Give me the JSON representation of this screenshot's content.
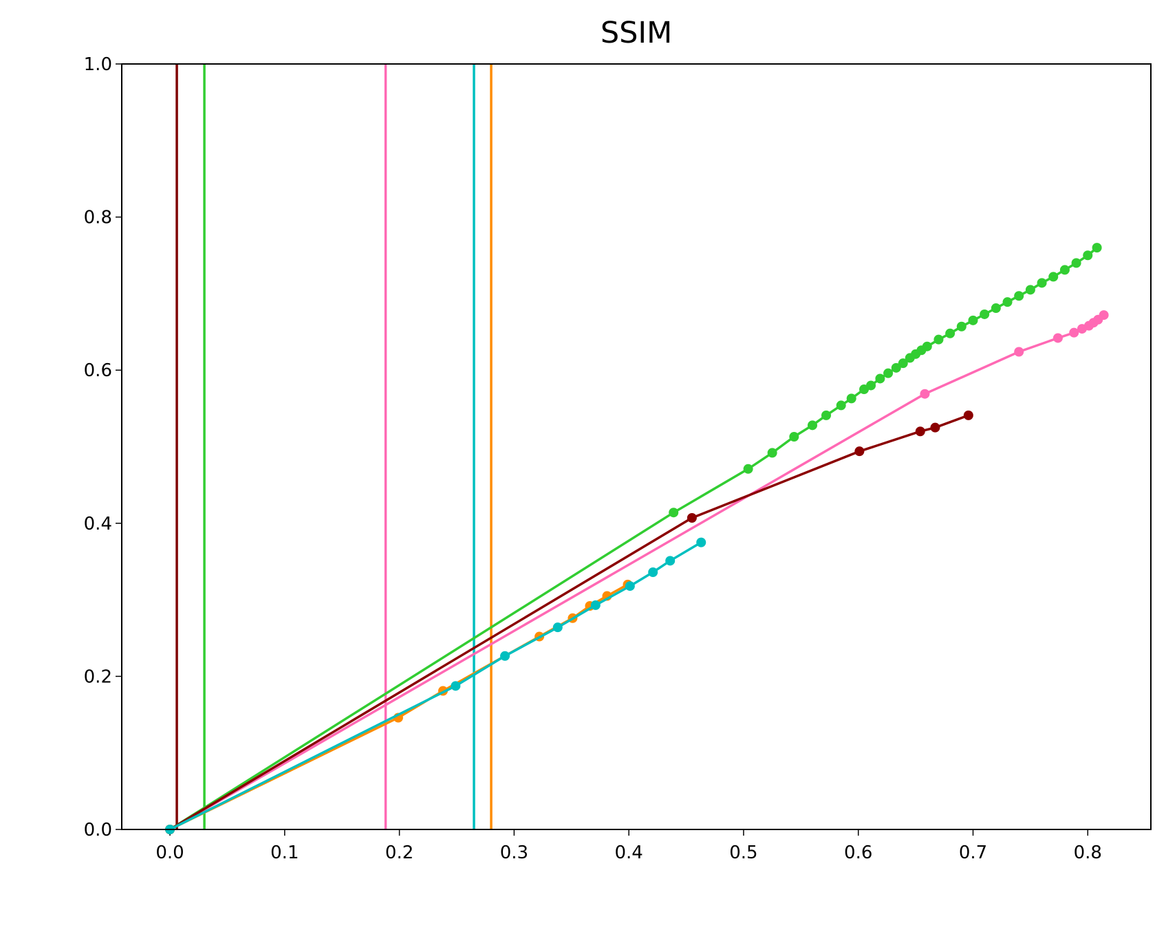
{
  "chart_data": {
    "type": "line",
    "title": "SSIM",
    "xlim": [
      -0.042,
      0.855
    ],
    "ylim": [
      0,
      1
    ],
    "xticks": [
      {
        "value": 0,
        "label": "0.0"
      },
      {
        "value": 0.1,
        "label": "0.1"
      },
      {
        "value": 0.2,
        "label": "0.2"
      },
      {
        "value": 0.3,
        "label": "0.3"
      },
      {
        "value": 0.4,
        "label": "0.4"
      },
      {
        "value": 0.5,
        "label": "0.5"
      },
      {
        "value": 0.6,
        "label": "0.6"
      },
      {
        "value": 0.7,
        "label": "0.7"
      },
      {
        "value": 0.8,
        "label": "0.8"
      }
    ],
    "yticks": [
      {
        "value": 0,
        "label": "0.0"
      },
      {
        "value": 0.2,
        "label": "0.2"
      },
      {
        "value": 0.4,
        "label": "0.4"
      },
      {
        "value": 0.6,
        "label": "0.6"
      },
      {
        "value": 0.8,
        "label": "0.8"
      },
      {
        "value": 1,
        "label": "1.0"
      }
    ],
    "vlines": [
      {
        "x": 0.006,
        "color": "#800000"
      },
      {
        "x": 0.03,
        "color": "#32cd32"
      },
      {
        "x": 0.188,
        "color": "#ff69b4"
      },
      {
        "x": 0.265,
        "color": "#00bfbf"
      },
      {
        "x": 0.28,
        "color": "#ff8c00"
      }
    ],
    "series": [
      {
        "color": "#32cd32",
        "x": [
          0,
          0.439,
          0.504,
          0.525,
          0.544,
          0.56,
          0.572,
          0.585,
          0.594,
          0.605,
          0.611,
          0.619,
          0.626,
          0.633,
          0.639,
          0.645,
          0.65,
          0.655,
          0.66,
          0.67,
          0.68,
          0.69,
          0.7,
          0.71,
          0.72,
          0.73,
          0.74,
          0.75,
          0.76,
          0.77,
          0.78,
          0.79,
          0.8,
          0.808
        ],
        "values": [
          0,
          0.414,
          0.471,
          0.492,
          0.513,
          0.528,
          0.541,
          0.554,
          0.563,
          0.575,
          0.58,
          0.589,
          0.596,
          0.603,
          0.609,
          0.616,
          0.621,
          0.626,
          0.631,
          0.64,
          0.648,
          0.657,
          0.665,
          0.673,
          0.681,
          0.689,
          0.697,
          0.705,
          0.714,
          0.722,
          0.731,
          0.74,
          0.75,
          0.76
        ]
      },
      {
        "color": "#ff69b4",
        "x": [
          0,
          0.658,
          0.74,
          0.774,
          0.788,
          0.795,
          0.801,
          0.805,
          0.809,
          0.814
        ],
        "values": [
          0,
          0.569,
          0.624,
          0.642,
          0.649,
          0.654,
          0.658,
          0.662,
          0.666,
          0.672
        ]
      },
      {
        "color": "#8b0000",
        "x": [
          0,
          0.455,
          0.601,
          0.654,
          0.667,
          0.696
        ],
        "values": [
          0,
          0.407,
          0.494,
          0.52,
          0.525,
          0.541
        ]
      },
      {
        "color": "#ff8c00",
        "x": [
          0,
          0.199,
          0.238,
          0.322,
          0.351,
          0.366,
          0.381,
          0.399
        ],
        "values": [
          0,
          0.146,
          0.181,
          0.252,
          0.276,
          0.292,
          0.305,
          0.32
        ]
      },
      {
        "color": "#00bfbf",
        "x": [
          0,
          0.249,
          0.292,
          0.338,
          0.371,
          0.401,
          0.421,
          0.436,
          0.463
        ],
        "values": [
          0,
          0.1875,
          0.2266,
          0.264,
          0.293,
          0.318,
          0.336,
          0.351,
          0.375
        ]
      }
    ]
  }
}
